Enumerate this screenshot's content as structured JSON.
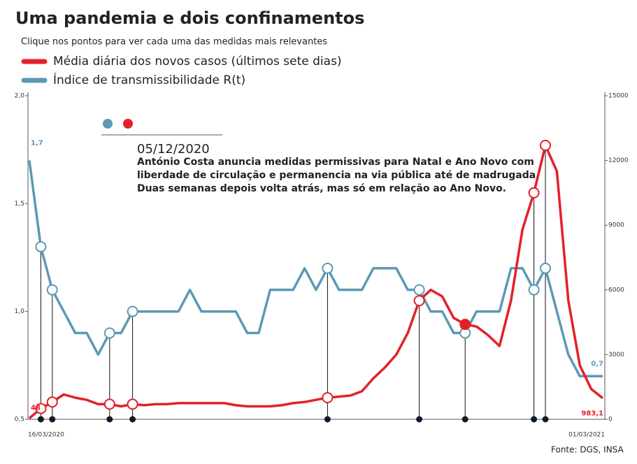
{
  "chart_data": {
    "type": "line",
    "title": "Uma pandemia e dois confinamentos",
    "subtitle": "Clique nos pontos para ver cada uma das medidas mais relevantes",
    "source": "Fonte: DGS, INSA",
    "annotation": {
      "date": "05/12/2020",
      "lines": [
        "António Costa anuncia medidas permissivas para Natal e Ano Novo com",
        "liberdade de circulação e permanencia na via pública até de madrugada.",
        "Duas semanas depois volta atrás, mas só em relação ao Ano Novo."
      ]
    },
    "categories": [
      "16/03/2020",
      null,
      null,
      null,
      null,
      null,
      null,
      null,
      null,
      null,
      null,
      null,
      null,
      null,
      null,
      null,
      null,
      null,
      null,
      null,
      null,
      null,
      null,
      null,
      null,
      null,
      null,
      null,
      null,
      null,
      null,
      null,
      null,
      null,
      null,
      null,
      null,
      null,
      null,
      null,
      null,
      null,
      null,
      null,
      null,
      null,
      null,
      null,
      null,
      null,
      "01/03/2021"
    ],
    "ylim": [
      0.5,
      2.0
    ],
    "yticks": [
      {
        "value": 0.5,
        "label": "0,5"
      },
      {
        "value": 1.0,
        "label": "1,0"
      },
      {
        "value": 1.5,
        "label": "1,5"
      },
      {
        "value": 2.0,
        "label": "2,0"
      }
    ],
    "y2lim": [
      0,
      15000
    ],
    "y2ticks": [
      0,
      3000,
      6000,
      9000,
      12000,
      15000
    ],
    "grid": false,
    "series": [
      {
        "name": "Média diária dos novos casos (últimos sete dias)",
        "color": "#e3202a",
        "axis": "y2",
        "values": [
          48,
          500,
          800,
          1150,
          1000,
          900,
          700,
          700,
          600,
          700,
          650,
          700,
          700,
          750,
          750,
          750,
          750,
          750,
          650,
          600,
          600,
          600,
          650,
          750,
          800,
          900,
          1000,
          1050,
          1100,
          1300,
          1900,
          2400,
          3000,
          4000,
          5500,
          6000,
          5700,
          4700,
          4400,
          4300,
          3900,
          3400,
          5500,
          8800,
          10500,
          12700,
          11500,
          5500,
          2500,
          1400,
          983.1
        ],
        "value_labels": [
          "48",
          null,
          null,
          null,
          null,
          null,
          null,
          null,
          null,
          null,
          null,
          null,
          null,
          null,
          null,
          null,
          null,
          null,
          null,
          null,
          null,
          null,
          null,
          null,
          null,
          null,
          null,
          null,
          null,
          null,
          null,
          null,
          null,
          null,
          null,
          null,
          null,
          null,
          null,
          null,
          null,
          null,
          null,
          null,
          null,
          null,
          null,
          null,
          null,
          null,
          "983,1"
        ]
      },
      {
        "name": "Índice de transmissibilidade R(t)",
        "color": "#5b9ab5",
        "values": [
          1.7,
          1.3,
          1.1,
          1.0,
          0.9,
          0.9,
          0.8,
          0.9,
          0.9,
          1.0,
          1.0,
          1.0,
          1.0,
          1.0,
          1.1,
          1.0,
          1.0,
          1.0,
          1.0,
          0.9,
          0.9,
          1.1,
          1.1,
          1.1,
          1.2,
          1.1,
          1.2,
          1.1,
          1.1,
          1.1,
          1.2,
          1.2,
          1.2,
          1.1,
          1.1,
          1.0,
          1.0,
          0.9,
          0.9,
          1.0,
          1.0,
          1.0,
          1.2,
          1.2,
          1.1,
          1.2,
          1.0,
          0.8,
          0.7,
          0.7,
          0.7
        ],
        "value_labels": [
          "1,7",
          null,
          null,
          null,
          null,
          null,
          null,
          null,
          null,
          null,
          null,
          null,
          null,
          null,
          null,
          null,
          null,
          null,
          null,
          null,
          null,
          null,
          null,
          null,
          null,
          null,
          null,
          null,
          null,
          null,
          null,
          null,
          null,
          null,
          null,
          null,
          null,
          null,
          null,
          null,
          null,
          null,
          null,
          null,
          null,
          null,
          null,
          null,
          null,
          null,
          "0,7"
        ]
      }
    ]
  }
}
